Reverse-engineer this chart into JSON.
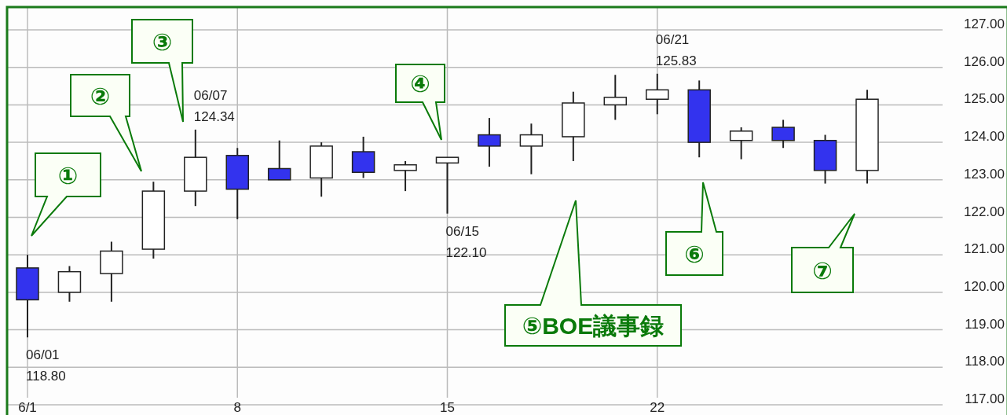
{
  "chart_data": {
    "type": "candlestick",
    "categories": [
      "6/1",
      null,
      null,
      null,
      null,
      "8",
      null,
      null,
      null,
      null,
      "15",
      null,
      null,
      null,
      null,
      "22",
      null,
      null,
      null,
      null,
      null
    ],
    "ohlc": [
      [
        120.65,
        121.0,
        118.8,
        119.8
      ],
      [
        120.0,
        120.7,
        119.75,
        120.55
      ],
      [
        120.5,
        121.35,
        119.75,
        121.1
      ],
      [
        121.15,
        122.95,
        120.9,
        122.7
      ],
      [
        122.7,
        124.34,
        122.3,
        123.6
      ],
      [
        123.65,
        123.85,
        121.95,
        122.75
      ],
      [
        123.3,
        124.05,
        123.0,
        123.0
      ],
      [
        123.05,
        124.0,
        122.55,
        123.9
      ],
      [
        123.75,
        124.15,
        123.05,
        123.2
      ],
      [
        123.25,
        123.5,
        122.7,
        123.4
      ],
      [
        123.45,
        123.6,
        122.1,
        123.6
      ],
      [
        124.2,
        124.65,
        123.35,
        123.9
      ],
      [
        123.9,
        124.5,
        123.15,
        124.2
      ],
      [
        124.15,
        125.35,
        123.5,
        125.05
      ],
      [
        125.0,
        125.8,
        124.6,
        125.2
      ],
      [
        125.15,
        125.83,
        124.75,
        125.4
      ],
      [
        125.4,
        125.65,
        123.6,
        124.0
      ],
      [
        124.05,
        124.4,
        123.55,
        124.3
      ],
      [
        124.4,
        124.6,
        123.85,
        124.05
      ],
      [
        124.05,
        124.2,
        122.9,
        123.25
      ],
      [
        123.25,
        125.4,
        122.9,
        125.15
      ]
    ],
    "colors": [
      "#3333ee",
      "#ffffff",
      "#ffffff",
      "#ffffff",
      "#ffffff",
      "#3333ee",
      "#3333ee",
      "#ffffff",
      "#3333ee",
      "#ffffff",
      "#ffffff",
      "#3333ee",
      "#ffffff",
      "#ffffff",
      "#ffffff",
      "#ffffff",
      "#3333ee",
      "#ffffff",
      "#3333ee",
      "#3333ee",
      "#ffffff"
    ],
    "ylim": [
      117,
      127
    ],
    "yticks": [
      {
        "value": 117,
        "label": "117.00"
      },
      {
        "value": 118,
        "label": "118.00"
      },
      {
        "value": 119,
        "label": "119.00"
      },
      {
        "value": 120,
        "label": "120.00"
      },
      {
        "value": 121,
        "label": "121.00"
      },
      {
        "value": 122,
        "label": "122.00"
      },
      {
        "value": 123,
        "label": "123.00"
      },
      {
        "value": 124,
        "label": "124.00"
      },
      {
        "value": 125,
        "label": "125.00"
      },
      {
        "value": 126,
        "label": "126.00"
      },
      {
        "value": 127,
        "label": "127.00"
      }
    ],
    "grid": true,
    "annotations": [
      "06/01 118.80",
      "06/07 124.34",
      "06/15 122.10",
      "06/21 125.83",
      "①",
      "②",
      "③",
      "④",
      "⑤BOE議事録",
      "⑥",
      "⑦"
    ]
  }
}
